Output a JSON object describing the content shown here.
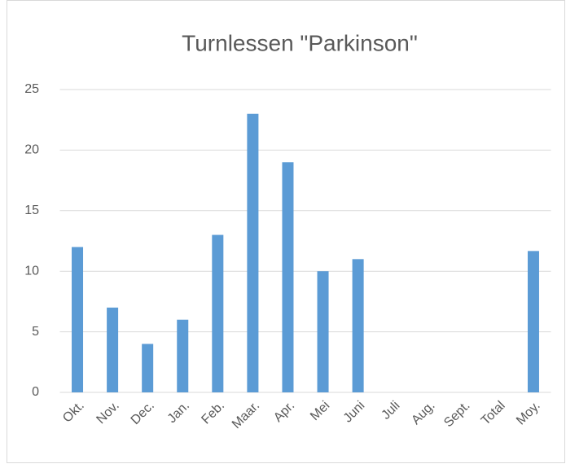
{
  "chart_data": {
    "type": "bar",
    "title": "Turnlessen \"Parkinson\"",
    "categories": [
      "Okt.",
      "Nov.",
      "Dec.",
      "Jan.",
      "Feb.",
      "Maar.",
      "Apr.",
      "Mei",
      "Juni",
      "Juli",
      "Aug.",
      "Sept.",
      "Total",
      "Moy."
    ],
    "values": [
      12,
      7,
      4,
      6,
      13,
      23,
      19,
      10,
      11,
      null,
      null,
      null,
      null,
      11.67
    ],
    "color": "#5b9bd5",
    "ylim": [
      0,
      25
    ],
    "yticks": [
      0,
      5,
      10,
      15,
      20,
      25
    ],
    "grid": true
  }
}
